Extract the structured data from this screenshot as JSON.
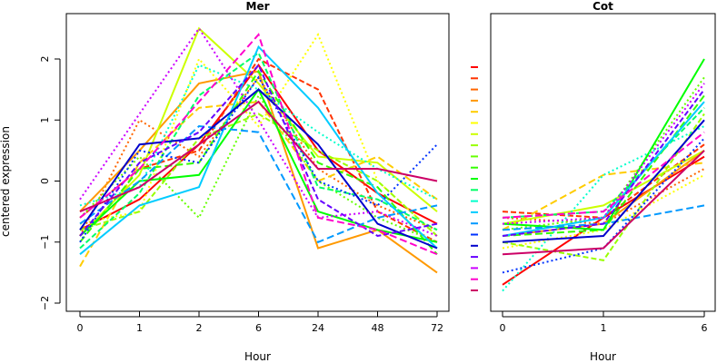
{
  "figure": {
    "ylabel": "centered expression",
    "series_colors": [
      "#ff0000",
      "#ff3300",
      "#ff6600",
      "#ff9900",
      "#ffcc00",
      "#ffff00",
      "#ccff00",
      "#99ff00",
      "#66ff00",
      "#33ff00",
      "#00ff00",
      "#00ff66",
      "#00ffcc",
      "#00ccff",
      "#0099ff",
      "#0033ff",
      "#0000cc",
      "#6600ff",
      "#cc00ff",
      "#ff00cc",
      "#cc0066"
    ]
  },
  "chart_data": [
    {
      "type": "line",
      "title": "Mer",
      "xlabel": "Hour",
      "ylabel": "centered expression",
      "categories": [
        "0",
        "1",
        "2",
        "6",
        "24",
        "48",
        "72"
      ],
      "ylim": [
        -2,
        2.5
      ],
      "yticks": [
        -2,
        -1,
        0,
        1,
        2
      ],
      "grid": false,
      "series": [
        {
          "values": [
            -0.8,
            -0.3,
            0.6,
            1.9,
            0.5,
            -0.2,
            -0.7
          ]
        },
        {
          "values": [
            -0.6,
            0.2,
            0.5,
            2.0,
            1.5,
            -0.5,
            -1.0
          ]
        },
        {
          "values": [
            -0.9,
            1.0,
            0.4,
            1.7,
            0.2,
            -0.4,
            -0.8
          ]
        },
        {
          "values": [
            -0.5,
            0.5,
            1.6,
            1.8,
            -1.1,
            -0.8,
            -1.5
          ]
        },
        {
          "values": [
            -1.4,
            0.3,
            1.2,
            1.3,
            0.0,
            0.4,
            -0.3
          ]
        },
        {
          "values": [
            -0.7,
            -0.5,
            2.0,
            0.9,
            2.4,
            0.0,
            -0.9
          ]
        },
        {
          "values": [
            -0.9,
            0.1,
            2.5,
            1.6,
            0.4,
            0.3,
            -0.5
          ]
        },
        {
          "values": [
            -0.8,
            -0.5,
            0.7,
            1.1,
            0.5,
            0.0,
            -0.9
          ]
        },
        {
          "values": [
            -0.6,
            0.4,
            -0.6,
            1.4,
            0.0,
            -0.6,
            -1.0
          ]
        },
        {
          "values": [
            -1.0,
            0.2,
            0.3,
            1.8,
            0.3,
            -0.1,
            -1.2
          ]
        },
        {
          "values": [
            -0.9,
            0.0,
            0.1,
            1.5,
            -0.5,
            -0.8,
            -1.0
          ]
        },
        {
          "values": [
            -1.1,
            -0.2,
            1.4,
            2.1,
            -0.1,
            -0.3,
            -0.8
          ]
        },
        {
          "values": [
            -0.4,
            -0.1,
            1.9,
            1.5,
            0.8,
            0.2,
            -0.3
          ]
        },
        {
          "values": [
            -1.2,
            -0.4,
            -0.1,
            2.2,
            1.2,
            -0.2,
            -1.1
          ]
        },
        {
          "values": [
            -0.7,
            0.0,
            0.9,
            0.8,
            -1.0,
            -0.6,
            -0.4
          ]
        },
        {
          "values": [
            -1.0,
            0.5,
            0.3,
            1.7,
            0.0,
            -0.4,
            0.6
          ]
        },
        {
          "values": [
            -0.8,
            0.6,
            0.7,
            1.5,
            0.6,
            -0.7,
            -1.1
          ]
        },
        {
          "values": [
            -0.9,
            0.3,
            0.8,
            1.9,
            -0.3,
            -0.9,
            -0.7
          ]
        },
        {
          "values": [
            -0.3,
            1.1,
            2.5,
            1.0,
            -0.6,
            -0.5,
            -0.9
          ]
        },
        {
          "values": [
            -0.6,
            0.2,
            1.3,
            2.4,
            -0.6,
            -0.8,
            -1.2
          ]
        },
        {
          "values": [
            -0.5,
            -0.1,
            0.6,
            1.3,
            0.2,
            0.2,
            0.0
          ]
        }
      ]
    },
    {
      "type": "line",
      "title": "Cot",
      "xlabel": "Hour",
      "categories": [
        "0",
        "1",
        "6"
      ],
      "ylim": [
        -2,
        2.5
      ],
      "grid": false,
      "series": [
        {
          "values": [
            -1.7,
            -0.6,
            0.4
          ]
        },
        {
          "values": [
            -0.5,
            -0.6,
            0.6
          ]
        },
        {
          "values": [
            -0.6,
            -0.7,
            0.2
          ]
        },
        {
          "values": [
            -0.9,
            -0.7,
            0.5
          ]
        },
        {
          "values": [
            -0.8,
            0.1,
            0.3
          ]
        },
        {
          "values": [
            -1.1,
            -0.8,
            0.1
          ]
        },
        {
          "values": [
            -0.7,
            -0.4,
            0.5
          ]
        },
        {
          "values": [
            -1.0,
            -1.3,
            1.1
          ]
        },
        {
          "values": [
            -0.8,
            -0.6,
            1.7
          ]
        },
        {
          "values": [
            -0.9,
            -0.8,
            1.4
          ]
        },
        {
          "values": [
            -0.7,
            -0.8,
            2.0
          ]
        },
        {
          "values": [
            -0.6,
            -0.5,
            1.2
          ]
        },
        {
          "values": [
            -1.8,
            0.1,
            0.9
          ]
        },
        {
          "values": [
            -0.9,
            -0.6,
            1.3
          ]
        },
        {
          "values": [
            -0.8,
            -0.7,
            -0.4
          ]
        },
        {
          "values": [
            -1.5,
            -1.1,
            0.7
          ]
        },
        {
          "values": [
            -1.0,
            -0.9,
            1.0
          ]
        },
        {
          "values": [
            -0.9,
            -0.7,
            1.5
          ]
        },
        {
          "values": [
            -0.7,
            -0.6,
            1.6
          ]
        },
        {
          "values": [
            -0.6,
            -0.5,
            0.8
          ]
        },
        {
          "values": [
            -1.2,
            -1.1,
            0.5
          ]
        }
      ]
    }
  ]
}
